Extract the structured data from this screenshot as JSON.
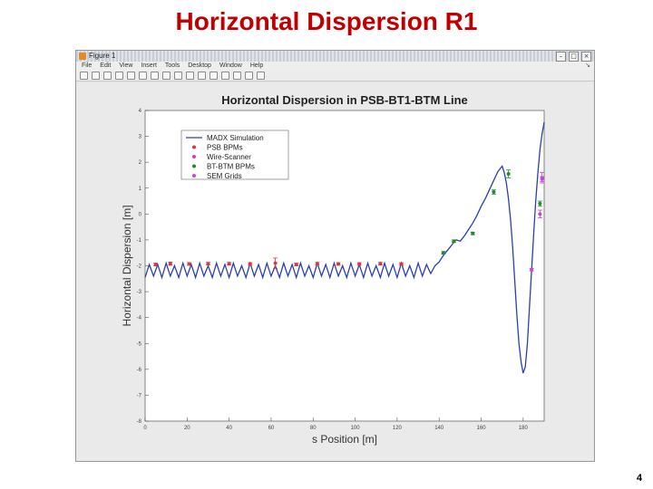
{
  "slide": {
    "title": "Horizontal Dispersion R1",
    "page_number": "4"
  },
  "window": {
    "title": "Figure 1",
    "menu": [
      "File",
      "Edit",
      "View",
      "Insert",
      "Tools",
      "Desktop",
      "Window",
      "Help"
    ],
    "icons": [
      "new-file-icon",
      "open-icon",
      "save-icon",
      "print-icon",
      "arrow-icon",
      "zoom-in-icon",
      "zoom-out-icon",
      "pan-icon",
      "rotate-icon",
      "data-cursor-icon",
      "brush-icon",
      "link-icon",
      "colorbar-icon",
      "legend-icon",
      "hide-plot-icon",
      "show-plot-icon"
    ]
  },
  "chart_data": {
    "type": "line",
    "title": "Horizontal Dispersion in PSB-BT1-BTM Line",
    "xlabel": "s Position [m]",
    "ylabel": "Horizontal Dispersion [m]",
    "xlim": [
      0,
      190
    ],
    "ylim": [
      -8,
      4
    ],
    "xticks": [
      0,
      20,
      40,
      60,
      80,
      100,
      120,
      140,
      160,
      180
    ],
    "yticks": [
      -8,
      -7,
      -6,
      -5,
      -4,
      -3,
      -2,
      -1,
      0,
      1,
      2,
      3,
      4
    ],
    "grid": false,
    "legend_position": "top-left",
    "colors": {
      "madx": "#2a3fb0",
      "psb": "#d63a3a",
      "wire": "#d23dd0",
      "btbtm": "#1f8a2e",
      "sem": "#c44ad6"
    },
    "series": [
      {
        "name": "MADX Simulation",
        "kind": "line",
        "x": [
          0,
          2,
          4,
          6,
          8,
          10,
          12,
          14,
          16,
          18,
          20,
          22,
          24,
          26,
          28,
          30,
          32,
          34,
          36,
          38,
          40,
          42,
          44,
          46,
          48,
          50,
          52,
          54,
          56,
          58,
          60,
          62,
          64,
          66,
          68,
          70,
          72,
          74,
          76,
          78,
          80,
          82,
          84,
          86,
          88,
          90,
          92,
          94,
          96,
          98,
          100,
          102,
          104,
          106,
          108,
          110,
          112,
          114,
          116,
          118,
          120,
          122,
          124,
          126,
          128,
          130,
          132,
          134,
          136,
          138,
          140,
          142,
          144,
          146,
          148,
          150,
          152,
          154,
          156,
          158,
          160,
          162,
          164,
          166,
          168,
          170,
          171,
          172,
          173,
          174,
          175,
          176,
          177,
          178,
          179,
          180,
          181,
          182,
          183,
          184,
          185,
          186,
          187,
          188,
          189,
          190
        ],
        "y": [
          -2.45,
          -1.95,
          -2.4,
          -1.95,
          -2.45,
          -1.9,
          -2.4,
          -2.0,
          -2.45,
          -1.9,
          -2.4,
          -1.95,
          -2.45,
          -1.9,
          -2.4,
          -2.0,
          -2.45,
          -1.9,
          -2.4,
          -1.95,
          -2.45,
          -1.9,
          -2.4,
          -2.0,
          -2.45,
          -1.9,
          -2.4,
          -1.95,
          -2.45,
          -1.9,
          -2.4,
          -2.0,
          -2.45,
          -1.9,
          -2.4,
          -1.95,
          -2.45,
          -1.9,
          -2.4,
          -2.0,
          -2.45,
          -1.9,
          -2.4,
          -1.95,
          -2.45,
          -1.9,
          -2.4,
          -2.0,
          -2.45,
          -1.9,
          -2.4,
          -1.95,
          -2.45,
          -1.9,
          -2.4,
          -2.0,
          -2.45,
          -1.9,
          -2.4,
          -1.95,
          -2.45,
          -1.9,
          -2.4,
          -2.0,
          -2.45,
          -1.9,
          -2.4,
          -1.95,
          -2.3,
          -2.0,
          -1.85,
          -1.6,
          -1.4,
          -1.2,
          -1.0,
          -1.05,
          -0.85,
          -0.6,
          -0.35,
          -0.05,
          0.3,
          0.6,
          0.95,
          1.3,
          1.65,
          1.85,
          1.6,
          1.2,
          0.6,
          -0.2,
          -1.3,
          -2.6,
          -3.9,
          -5.0,
          -5.7,
          -6.15,
          -5.9,
          -5.0,
          -3.6,
          -2.2,
          -0.8,
          0.5,
          1.6,
          2.5,
          3.1,
          3.55
        ]
      },
      {
        "name": "PSB BPMs",
        "kind": "markers",
        "x": [
          5,
          12,
          21,
          30,
          40,
          50,
          62,
          72,
          82,
          92,
          102,
          112,
          122
        ],
        "y": [
          -1.95,
          -1.92,
          -1.93,
          -1.92,
          -1.92,
          -1.93,
          -1.9,
          -1.95,
          -1.92,
          -1.93,
          -1.93,
          -1.92,
          -1.93
        ],
        "err": [
          0.05,
          0.06,
          0.05,
          0.05,
          0.05,
          0.05,
          0.2,
          0.05,
          0.05,
          0.05,
          0.05,
          0.05,
          0.05
        ]
      },
      {
        "name": "Wire-Scanner",
        "kind": "markers",
        "x": [
          188,
          189
        ],
        "y": [
          0.0,
          1.4
        ],
        "err": [
          0.15,
          0.2
        ]
      },
      {
        "name": "BT-BTM BPMs",
        "kind": "markers",
        "x": [
          142,
          147,
          156,
          166,
          173,
          188
        ],
        "y": [
          -1.5,
          -1.05,
          -0.75,
          0.85,
          1.55,
          0.4
        ],
        "err": [
          0.05,
          0.05,
          0.05,
          0.08,
          0.15,
          0.1
        ]
      },
      {
        "name": "SEM Grids",
        "kind": "markers",
        "x": [
          184,
          189
        ],
        "y": [
          -2.15,
          1.35
        ],
        "err": [
          0.05,
          0.1
        ]
      }
    ]
  }
}
